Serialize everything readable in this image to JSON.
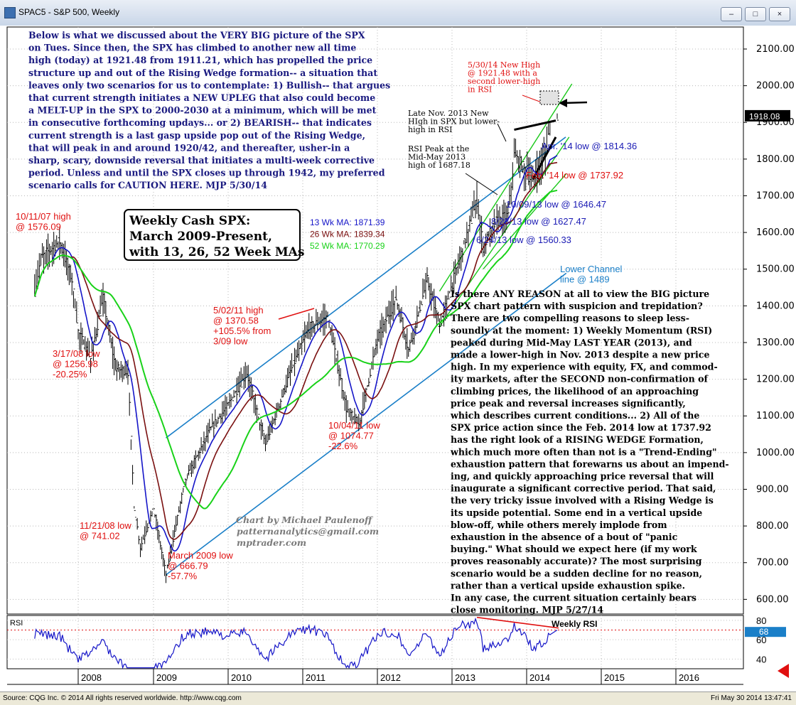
{
  "window": {
    "title": "SPAC5 - S&P 500, Weekly"
  },
  "status": {
    "left": "Source: CQG Inc. © 2014 All rights reserved worldwide. http://www.cqg.com",
    "right": "Fri May 30 2014 13:47:41"
  },
  "colors": {
    "price": "#000000",
    "ma13": "#1515c8",
    "ma26": "#7a1010",
    "ma52": "#19d219",
    "channel": "#1a7fc8",
    "wedge": "#19c819",
    "annotation_red": "#e01010",
    "annotation_blue": "#1a1ab4",
    "text_navy": "#1a1a80"
  },
  "chart_data": [
    {
      "type": "candlestick",
      "title": "Weekly Cash SPX: March 2009-Present, with 13, 26, 52 Week MAs",
      "box_lines": [
        "Weekly Cash SPX:",
        "March 2009-Present,",
        "with 13, 26, 52 Week MAs"
      ],
      "x": [
        "2008",
        "2009",
        "2010",
        "2011",
        "2012",
        "2013",
        "2014",
        "2015",
        "2016"
      ],
      "y_ticks": [
        600,
        700,
        800,
        900,
        1000,
        1100,
        1200,
        1300,
        1400,
        1500,
        1600,
        1700,
        1800,
        1900,
        2000,
        2100
      ],
      "y_tick_labels": [
        "600.00",
        "700.00",
        "800.00",
        "900.00",
        "1000.00",
        "1100.00",
        "1200.00",
        "1300.00",
        "1400.00",
        "1500.00",
        "1600.00",
        "1700.00",
        "1800.00",
        "1900.00",
        "2000.00",
        "2100.00"
      ],
      "ylim": [
        560,
        2160
      ],
      "last_price": 1918.08,
      "last_price_label": "1918.08",
      "legend": [
        {
          "label": "13 Wk MA: 1871.39",
          "color": "#1515c8"
        },
        {
          "label": "26 Wk MA: 1839.34",
          "color": "#7a1010"
        },
        {
          "label": "52 Wk MA: 1770.29",
          "color": "#19d219"
        }
      ],
      "price_points": [
        {
          "date": "2007-06",
          "value": 1440
        },
        {
          "date": "2007-07",
          "value": 1530
        },
        {
          "date": "2007-10",
          "value": 1576.09
        },
        {
          "date": "2007-12",
          "value": 1470
        },
        {
          "date": "2008-01",
          "value": 1330
        },
        {
          "date": "2008-03",
          "value": 1256.98
        },
        {
          "date": "2008-05",
          "value": 1420
        },
        {
          "date": "2008-07",
          "value": 1230
        },
        {
          "date": "2008-09",
          "value": 1220
        },
        {
          "date": "2008-10",
          "value": 850
        },
        {
          "date": "2008-11",
          "value": 741.02
        },
        {
          "date": "2009-01",
          "value": 850
        },
        {
          "date": "2009-03",
          "value": 666.79
        },
        {
          "date": "2009-06",
          "value": 920
        },
        {
          "date": "2009-10",
          "value": 1060
        },
        {
          "date": "2010-01",
          "value": 1130
        },
        {
          "date": "2010-04",
          "value": 1217
        },
        {
          "date": "2010-07",
          "value": 1022
        },
        {
          "date": "2010-11",
          "value": 1220
        },
        {
          "date": "2011-02",
          "value": 1340
        },
        {
          "date": "2011-05",
          "value": 1370.58
        },
        {
          "date": "2011-08",
          "value": 1120
        },
        {
          "date": "2011-10",
          "value": 1074.77
        },
        {
          "date": "2012-01",
          "value": 1310
        },
        {
          "date": "2012-04",
          "value": 1420
        },
        {
          "date": "2012-06",
          "value": 1280
        },
        {
          "date": "2012-09",
          "value": 1470
        },
        {
          "date": "2012-11",
          "value": 1343
        },
        {
          "date": "2013-02",
          "value": 1515
        },
        {
          "date": "2013-05",
          "value": 1687.18
        },
        {
          "date": "2013-06",
          "value": 1560.33
        },
        {
          "date": "2013-08",
          "value": 1627.47
        },
        {
          "date": "2013-10",
          "value": 1646.47
        },
        {
          "date": "2013-11",
          "value": 1810
        },
        {
          "date": "2014-02",
          "value": 1737.92
        },
        {
          "date": "2014-04",
          "value": 1814.36
        },
        {
          "date": "2014-05",
          "value": 1921.48
        }
      ],
      "annotations": [
        {
          "lines": [
            "10/11/07 high",
            "@ 1576.09"
          ],
          "color": "#e01010"
        },
        {
          "lines": [
            "3/17/08 low",
            "@ 1256.98",
            "-20.25%"
          ],
          "color": "#e01010"
        },
        {
          "lines": [
            "11/21/08 low",
            "@ 741.02"
          ],
          "color": "#e01010"
        },
        {
          "lines": [
            "March 2009 low",
            "@ 666.79",
            "-57.7%"
          ],
          "color": "#e01010"
        },
        {
          "lines": [
            "5/02/11 high",
            "@ 1370.58",
            "+105.5% from",
            "3/09 low"
          ],
          "color": "#e01010"
        },
        {
          "lines": [
            "10/04/11 low",
            "@ 1074.77",
            "-22.6%"
          ],
          "color": "#e01010"
        },
        {
          "lines": [
            "6/24/13 low @ 1560.33"
          ],
          "color": "#1a1ab4"
        },
        {
          "lines": [
            "8/28/13 low @ 1627.47"
          ],
          "color": "#1a1ab4"
        },
        {
          "lines": [
            "10/09/13 low @ 1646.47"
          ],
          "color": "#1a1ab4"
        },
        {
          "lines": [
            "Feb. '14 low @ 1737.92"
          ],
          "color": "#e01010"
        },
        {
          "lines": [
            "Apr. '14 low @ 1814.36"
          ],
          "color": "#1a1ab4"
        },
        {
          "lines": [
            "5/30/14 New High",
            "@ 1921.48 with a",
            "second lower-high",
            "in RSI"
          ],
          "color": "#e01010"
        },
        {
          "lines": [
            "Late Nov. 2013 New",
            "HIgh in SPX but lower-",
            "high in RSI"
          ],
          "color": "#000000"
        },
        {
          "lines": [
            "RSI Peak at the",
            "Mid-May 2013",
            "high of 1687.18"
          ],
          "color": "#000000"
        },
        {
          "lines": [
            "Lower Channel",
            "line @ 1489"
          ],
          "color": "#1a7fc8"
        }
      ],
      "credit": [
        "Chart by Michael Paulenoff",
        "patternanalytics@gmail.com",
        "mptrader.com"
      ],
      "commentary_top": [
        "Below is what we discussed about the VERY BIG picture of the SPX",
        "on Tues. Since then, the SPX has climbed to another new all time",
        "high (today) at 1921.48 from 1911.21, which has propelled the price",
        "structure up and out of the Rising Wedge formation-- a situation that",
        "leaves only two scenarios for us to contemplate: 1) Bullish-- that argues",
        "that current strength initiates a NEW UPLEG that also could become",
        "a MELT-UP in the SPX to 2000-2030 at a minimum, which will be met",
        "in consecutive forthcoming updays... or 2) BEARISH-- that indicates",
        "current strength is a last gasp upside pop out of the Rising Wedge,",
        "that will peak in and around 1920/42, and thereafter, usher-in a",
        "sharp, scary, downside reversal that initiates a multi-week corrective",
        "period. Unless and until the SPX closes up through 1942, my preferred",
        "scenario calls for CAUTION HERE.  MJP  5/30/14"
      ],
      "commentary_bottom": [
        "Is there ANY REASON at all to view the BIG picture",
        "SPX chart pattern with suspicion and trepidation?",
        "There are two compelling reasons to sleep less-",
        "soundly at the moment: 1) Weekly Momentum (RSI)",
        "peaked during Mid-May LAST YEAR (2013), and",
        "made a lower-high in Nov. 2013 despite a new price",
        "high. In my experience with equity, FX, and commod-",
        "ity markets, after the SECOND non-confirmation of",
        "climbing prices, the likelihood of an approaching",
        "price peak and reversal increases significantly,",
        "which describes current conditions... 2) All of the",
        "SPX price action since the Feb. 2014 low at 1737.92",
        "has the right look of a RISING WEDGE Formation,",
        "which much more often than not is a \"Trend-Ending\"",
        "exhaustion pattern that forewarns us about an impend-",
        "ing, and quickly approaching price reversal that will",
        "inaugurate a significant corrective period. That said,",
        "the very tricky issue involved with a Rising Wedge is",
        "its upside potential. Some end in a vertical upside",
        "blow-off, while others merely implode from",
        "exhaustion in the absence of a bout of \"panic",
        "buying.\" What should we expect here (if my work",
        "proves reasonably accurate)? The most surprising",
        "scenario would be a sudden decline for no reason,",
        "rather than a vertical upside exhaustion spike.",
        "In any case, the current situation certainly bears",
        "close monitoring.  MJP  5/27/14"
      ]
    },
    {
      "type": "line",
      "title": "RSI",
      "series_label": "Weekly RSI",
      "y_ticks": [
        40,
        60,
        80
      ],
      "y_tick_labels": [
        "40",
        "60",
        "80"
      ],
      "ylim": [
        30,
        85
      ],
      "last_value": 68,
      "last_value_label": "68",
      "overbought_line": 70,
      "rsi_points": [
        {
          "date": "2007-06",
          "value": 66
        },
        {
          "date": "2007-10",
          "value": 64
        },
        {
          "date": "2008-01",
          "value": 38
        },
        {
          "date": "2008-05",
          "value": 58
        },
        {
          "date": "2008-07",
          "value": 40
        },
        {
          "date": "2008-10",
          "value": 22
        },
        {
          "date": "2009-03",
          "value": 34
        },
        {
          "date": "2009-06",
          "value": 66
        },
        {
          "date": "2009-10",
          "value": 68
        },
        {
          "date": "2010-01",
          "value": 64
        },
        {
          "date": "2010-04",
          "value": 68
        },
        {
          "date": "2010-07",
          "value": 40
        },
        {
          "date": "2010-11",
          "value": 66
        },
        {
          "date": "2011-02",
          "value": 72
        },
        {
          "date": "2011-05",
          "value": 63
        },
        {
          "date": "2011-08",
          "value": 30
        },
        {
          "date": "2011-10",
          "value": 36
        },
        {
          "date": "2012-01",
          "value": 66
        },
        {
          "date": "2012-04",
          "value": 68
        },
        {
          "date": "2012-06",
          "value": 44
        },
        {
          "date": "2012-09",
          "value": 66
        },
        {
          "date": "2012-11",
          "value": 44
        },
        {
          "date": "2013-02",
          "value": 74
        },
        {
          "date": "2013-05",
          "value": 78
        },
        {
          "date": "2013-06",
          "value": 52
        },
        {
          "date": "2013-08",
          "value": 56
        },
        {
          "date": "2013-10",
          "value": 60
        },
        {
          "date": "2013-11",
          "value": 76
        },
        {
          "date": "2014-02",
          "value": 52
        },
        {
          "date": "2014-04",
          "value": 56
        },
        {
          "date": "2014-05",
          "value": 68
        }
      ]
    }
  ]
}
